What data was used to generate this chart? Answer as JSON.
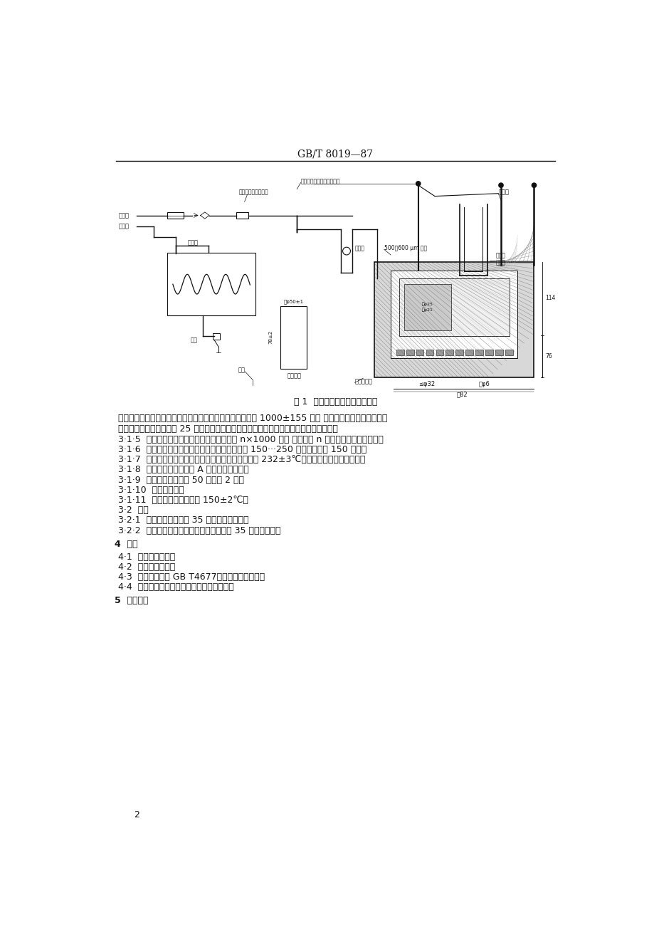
{
  "header_text": "GB/T 8019—87",
  "figure_caption": "图 1  噴射蒸发法实际胶质测定仪",
  "body_lines": [
    "孔和排气口，在配上锥形转接器后，每个排气口的流速应为 1000±155 毫升 秒，如果使用液体浴，应该",
    "用合适的液体装到距顶部 25 毫米以内。可以用温度控制器或适当的液体流速来保持温度。",
    "3·1·5  流量计：能测量空气或蒸汽的总流量为 n×1000 毫升 秒，其中 n 为仪器中嚏嘴孔的个数。",
    "3·1·6  烧结玻璃过滤漏斗：粗孔（最大孔径范围在 150···250 微米），容量 150 毫升。",
    "3·1·7  蒸汽过热器：用燃气或电加热，能将蒸汽加热到 232±3℃的所需蒸汽量达到海入口。",
    "3·1·8  温度计：应符合附录 A 所列的技术条件。",
    "3·1·9  带刻度量筒：容量 50 毫升和 2 升。",
    "3·1·10  不锈鑄镞子。",
    "3·1·11  烤筱：能控制温度在 150±2℃。",
    "3·2  材料",
    "3·2·1  空气：压力不大于 35 千帕的过滤空气。",
    "3·2·2  蒸汽：无油质残残余物，压力不低于 35 千帕的蒸汽。"
  ],
  "section4_title": "4  试剂",
  "section4_lines": [
    "4·1  甲苯：化学纯。",
    "4·2  丙酮：化学纯。",
    "4·3  正庚烷：符合 GB T4677标准正庚烷）规格。",
    "4·4  胶质溶剂：等体积甲苯和丙酮的混合物。"
  ],
  "section5_title": "5  准备工作",
  "page_number": "2",
  "bg_color": "#ffffff",
  "text_color": "#000000"
}
